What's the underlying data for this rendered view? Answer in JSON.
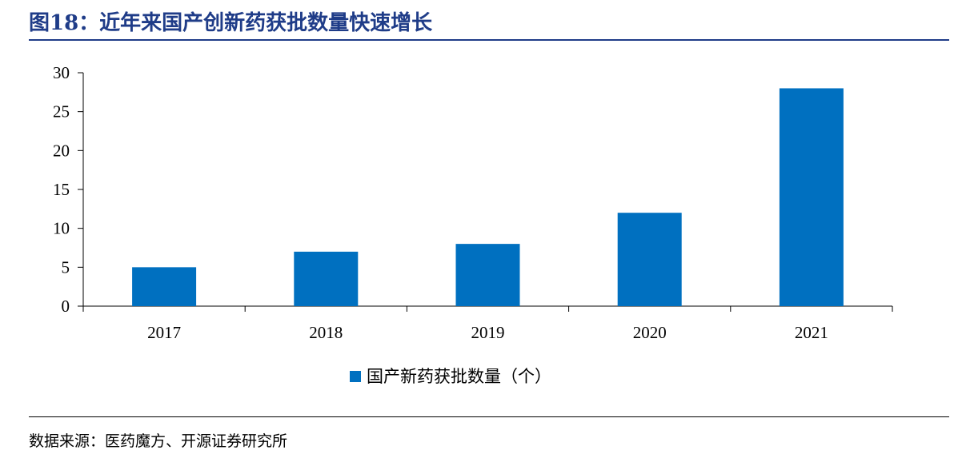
{
  "header": {
    "title": "图18：近年来国产创新药获批数量快速增长"
  },
  "footer": {
    "source": "数据来源：医药魔方、开源证券研究所"
  },
  "chart_data": {
    "type": "bar",
    "categories": [
      "2017",
      "2018",
      "2019",
      "2020",
      "2021"
    ],
    "series": [
      {
        "name": "国产新药获批数量（个）",
        "values": [
          5,
          7,
          8,
          12,
          28
        ],
        "color": "#0070c0"
      }
    ],
    "ylim": [
      0,
      30
    ],
    "yticks": [
      0,
      5,
      10,
      15,
      20,
      25,
      30
    ],
    "grid": false,
    "legend": "bottom-center"
  }
}
